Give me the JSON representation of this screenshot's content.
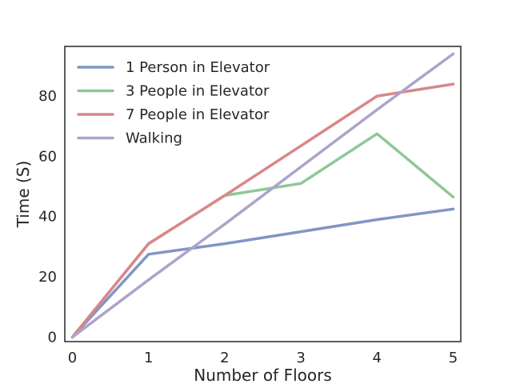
{
  "chart_data": {
    "type": "line",
    "title": "",
    "xlabel": "Number of Floors",
    "ylabel": "Time (S)",
    "x": [
      0,
      1,
      2,
      3,
      4,
      5
    ],
    "xticks": [
      "0",
      "1",
      "2",
      "3",
      "4",
      "5"
    ],
    "yticks": [
      "0",
      "20",
      "40",
      "60",
      "80"
    ],
    "xlim": [
      -0.1,
      5.1
    ],
    "ylim": [
      -1.5,
      96.5
    ],
    "grid": false,
    "legend_position": "top-left",
    "series": [
      {
        "name": "1 Person in Elevator",
        "color": "#8196c4",
        "values": [
          0,
          27.5,
          31,
          35,
          39,
          42.5
        ]
      },
      {
        "name": "3 People in Elevator",
        "color": "#8fc79a",
        "values": [
          0,
          31,
          47,
          51,
          67.5,
          46.5
        ]
      },
      {
        "name": "7 People in Elevator",
        "color": "#d9878a",
        "values": [
          0,
          31,
          47,
          63.5,
          80,
          84
        ]
      },
      {
        "name": "Walking",
        "color": "#ada3cc",
        "values": [
          0,
          19,
          37.5,
          56.5,
          75.5,
          94
        ]
      }
    ]
  }
}
